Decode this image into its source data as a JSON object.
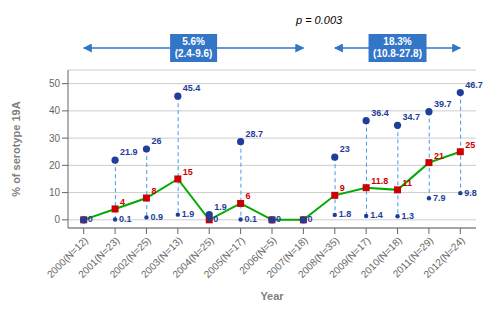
{
  "chart_data": {
    "type": "scatter",
    "xlabel": "Year",
    "ylabel": "% of serotype 19A",
    "categories": [
      "2000(N=12)",
      "2001(N=23)",
      "2002(N=25)",
      "2003(N=13)",
      "2004(N=25)",
      "2005(N=17)",
      "2006(N=5)",
      "2007(N=18)",
      "2008(N=35)",
      "2009(N=17)",
      "2010(N=18)",
      "2011(N=29)",
      "2012(N=24)"
    ],
    "ylim": [
      -3,
      55
    ],
    "yticks": [
      0,
      10,
      20,
      30,
      40,
      50
    ],
    "grid": true,
    "series": [
      {
        "type": "range",
        "color": "#4499EE",
        "line_style": "dashed",
        "values": [
          [
            0,
            0
          ],
          [
            0.1,
            21.9
          ],
          [
            0.9,
            26
          ],
          [
            1.9,
            45.4
          ],
          [
            0,
            1.9
          ],
          [
            0.1,
            28.7
          ],
          [
            0,
            0
          ],
          [
            0,
            0
          ],
          [
            1.8,
            23
          ],
          [
            1.4,
            36.4
          ],
          [
            1.3,
            34.7
          ],
          [
            7.9,
            39.7
          ],
          [
            9.8,
            46.7
          ]
        ]
      },
      {
        "type": "line",
        "color": "#00AA00",
        "values": [
          0,
          4,
          8,
          15,
          0,
          6,
          0,
          0,
          9,
          11.8,
          11,
          21,
          25
        ]
      },
      {
        "type": "scatter",
        "color": "#CC0000",
        "marker": "square",
        "values": [
          0,
          4,
          8,
          15,
          0,
          6,
          0,
          0,
          9,
          11.8,
          11,
          21,
          25
        ],
        "value_labels": [
          null,
          "4",
          "8",
          "15",
          null,
          "6",
          null,
          null,
          "9",
          "11.8",
          "11",
          "21",
          "25"
        ]
      },
      {
        "type": "scatter",
        "color": "#1F3E99",
        "marker": "circle",
        "values": [
          0,
          21.9,
          26,
          45.4,
          1.9,
          28.7,
          0,
          0,
          23,
          36.4,
          34.7,
          39.7,
          46.7
        ],
        "value_labels": [
          null,
          "21.9",
          "26",
          "45.4",
          "1.9",
          "28.7",
          null,
          null,
          "23",
          "36.4",
          "34.7",
          "39.7",
          "46.7"
        ]
      },
      {
        "type": "scatter",
        "color": "#1F3E99",
        "marker": "dot",
        "values": [
          0,
          0.1,
          0.9,
          1.9,
          0,
          0.1,
          0,
          0,
          1.8,
          1.4,
          1.3,
          7.9,
          9.8
        ],
        "data_labels": true
      }
    ],
    "annotations": [
      {
        "text": "p = 0.003"
      },
      {
        "text": "5.6%\n(2.4-9.6)",
        "from": "2000(N=12)",
        "to": "2007(N=18)",
        "color": "#3376C8"
      },
      {
        "text": "18.3%\n(10.8-27.8)",
        "from": "2008(N=35)",
        "to": "2012(N=24)",
        "color": "#3376C8"
      }
    ]
  }
}
